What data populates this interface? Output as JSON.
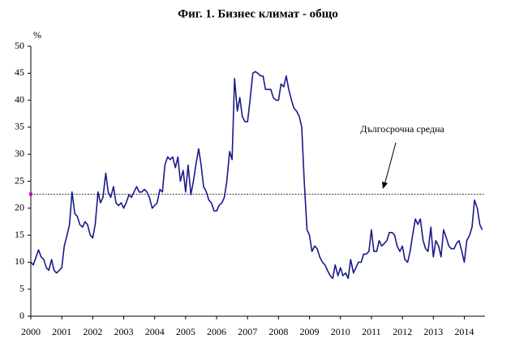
{
  "chart_data": {
    "type": "line",
    "title": "Фиг. 1. Бизнес климат - общо",
    "ylabel": "%",
    "annotation": "Дългосрочна средна",
    "average": 22.6,
    "average_color": "#cc00cc",
    "xlim": [
      2000,
      2014.67
    ],
    "xticks": [
      2000,
      2001,
      2002,
      2003,
      2004,
      2005,
      2006,
      2007,
      2008,
      2009,
      2010,
      2011,
      2012,
      2013,
      2014
    ],
    "ylim": [
      0,
      50
    ],
    "yticks": [
      0,
      5,
      10,
      15,
      20,
      25,
      30,
      35,
      40,
      45,
      50
    ],
    "grid": false,
    "x": [
      2000,
      2000.08,
      2000.17,
      2000.25,
      2000.33,
      2000.42,
      2000.5,
      2000.58,
      2000.67,
      2000.75,
      2000.83,
      2000.92,
      2001,
      2001.08,
      2001.17,
      2001.25,
      2001.33,
      2001.42,
      2001.5,
      2001.58,
      2001.67,
      2001.75,
      2001.83,
      2001.92,
      2002,
      2002.08,
      2002.17,
      2002.25,
      2002.33,
      2002.42,
      2002.5,
      2002.58,
      2002.67,
      2002.75,
      2002.83,
      2002.92,
      2003,
      2003.08,
      2003.17,
      2003.25,
      2003.33,
      2003.42,
      2003.5,
      2003.58,
      2003.67,
      2003.75,
      2003.83,
      2003.92,
      2004,
      2004.08,
      2004.17,
      2004.25,
      2004.33,
      2004.42,
      2004.5,
      2004.58,
      2004.67,
      2004.75,
      2004.83,
      2004.92,
      2005,
      2005.08,
      2005.17,
      2005.25,
      2005.33,
      2005.42,
      2005.5,
      2005.58,
      2005.67,
      2005.75,
      2005.83,
      2005.92,
      2006,
      2006.08,
      2006.17,
      2006.25,
      2006.33,
      2006.42,
      2006.5,
      2006.58,
      2006.67,
      2006.75,
      2006.83,
      2006.92,
      2007,
      2007.08,
      2007.17,
      2007.25,
      2007.33,
      2007.42,
      2007.5,
      2007.58,
      2007.67,
      2007.75,
      2007.83,
      2007.92,
      2008,
      2008.08,
      2008.17,
      2008.25,
      2008.33,
      2008.42,
      2008.5,
      2008.58,
      2008.67,
      2008.75,
      2008.83,
      2008.92,
      2009,
      2009.08,
      2009.17,
      2009.25,
      2009.33,
      2009.42,
      2009.5,
      2009.58,
      2009.67,
      2009.75,
      2009.83,
      2009.92,
      2010,
      2010.08,
      2010.17,
      2010.25,
      2010.33,
      2010.42,
      2010.5,
      2010.58,
      2010.67,
      2010.75,
      2010.83,
      2010.92,
      2011,
      2011.08,
      2011.17,
      2011.25,
      2011.33,
      2011.42,
      2011.5,
      2011.58,
      2011.67,
      2011.75,
      2011.83,
      2011.92,
      2012,
      2012.08,
      2012.17,
      2012.25,
      2012.33,
      2012.42,
      2012.5,
      2012.58,
      2012.67,
      2012.75,
      2012.83,
      2012.92,
      2013,
      2013.08,
      2013.17,
      2013.25,
      2013.33,
      2013.42,
      2013.5,
      2013.58,
      2013.67,
      2013.75,
      2013.83,
      2013.92,
      2014,
      2014.08,
      2014.17,
      2014.25,
      2014.33,
      2014.42,
      2014.5,
      2014.58
    ],
    "series": [
      {
        "color": "#1a1a8c",
        "values": [
          10,
          9.5,
          11,
          12.3,
          11,
          10.5,
          9,
          8.5,
          10.5,
          8.5,
          8,
          8.5,
          9,
          13,
          15,
          17,
          23,
          19,
          18.5,
          17,
          16.5,
          17.5,
          17,
          15,
          14.5,
          17,
          23,
          21,
          22,
          26.5,
          23,
          22,
          24,
          21,
          20.5,
          21,
          20,
          21,
          22.5,
          22,
          23,
          24,
          23,
          23,
          23.5,
          23,
          22,
          20,
          20.5,
          21,
          23.5,
          23,
          28,
          29.5,
          29,
          29.5,
          27.5,
          29.5,
          25,
          27,
          23,
          28,
          22.5,
          25,
          28,
          31,
          28,
          24,
          23,
          21.5,
          21,
          19.5,
          19.5,
          20.5,
          21,
          22,
          25,
          30.5,
          29,
          44,
          38,
          40.5,
          37,
          36,
          36,
          40,
          45,
          45.3,
          45,
          44.5,
          44.5,
          42,
          42,
          42,
          40.5,
          40,
          40,
          43,
          42.5,
          44.5,
          42,
          40,
          38.5,
          38,
          37,
          35,
          25,
          16,
          15,
          12,
          13,
          12.5,
          11,
          10,
          9.5,
          8.5,
          7.5,
          7,
          9.5,
          7.5,
          9,
          7.5,
          8,
          7,
          10.5,
          8,
          9,
          10,
          10,
          11.5,
          11.5,
          12,
          16,
          12,
          12,
          14,
          13,
          13.5,
          14,
          15.5,
          15.5,
          15,
          13,
          12,
          13,
          10.5,
          10,
          12,
          15,
          18,
          17,
          18,
          14,
          12.5,
          12,
          16.5,
          11,
          14,
          13,
          11,
          16,
          14.5,
          13,
          12.5,
          12.5,
          13.5,
          14,
          12,
          10,
          14,
          15,
          16.5,
          21.5,
          20,
          17,
          16
        ]
      }
    ]
  }
}
